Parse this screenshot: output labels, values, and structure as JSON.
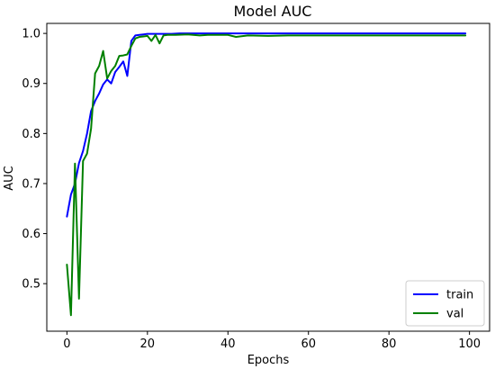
{
  "chart_data": {
    "type": "line",
    "title": "Model AUC",
    "xlabel": "Epochs",
    "ylabel": "AUC",
    "xlim": [
      -5,
      105
    ],
    "ylim": [
      0.405,
      1.02
    ],
    "xticks": [
      0,
      20,
      40,
      60,
      80,
      100
    ],
    "yticks": [
      0.5,
      0.6,
      0.7,
      0.8,
      0.9,
      1.0
    ],
    "xtick_labels": [
      "0",
      "20",
      "40",
      "60",
      "80",
      "100"
    ],
    "ytick_labels": [
      "0.5",
      "0.6",
      "0.7",
      "0.8",
      "0.9",
      "1.0"
    ],
    "grid": false,
    "legend_position": "lower-right",
    "series": [
      {
        "name": "train",
        "color": "#0000ff",
        "x": [
          0,
          1,
          2,
          3,
          4,
          5,
          6,
          7,
          8,
          9,
          10,
          11,
          12,
          13,
          14,
          15,
          16,
          17,
          18,
          19,
          20,
          22,
          24,
          26,
          28,
          30,
          35,
          40,
          45,
          50,
          55,
          60,
          65,
          70,
          75,
          80,
          85,
          90,
          95,
          99
        ],
        "y": [
          0.634,
          0.678,
          0.7,
          0.741,
          0.765,
          0.8,
          0.845,
          0.865,
          0.88,
          0.898,
          0.908,
          0.9,
          0.923,
          0.933,
          0.944,
          0.915,
          0.985,
          0.996,
          0.997,
          0.998,
          0.999,
          0.999,
          0.999,
          0.999,
          1.0,
          1.0,
          1.0,
          1.0,
          1.0,
          1.0,
          1.0,
          1.0,
          1.0,
          1.0,
          1.0,
          1.0,
          1.0,
          1.0,
          1.0,
          1.0
        ]
      },
      {
        "name": "val",
        "color": "#008000",
        "x": [
          0,
          1,
          2,
          3,
          4,
          5,
          6,
          7,
          8,
          9,
          10,
          11,
          12,
          13,
          14,
          15,
          16,
          17,
          18,
          19,
          20,
          21,
          22,
          23,
          24,
          25,
          27,
          30,
          33,
          35,
          38,
          40,
          42,
          45,
          50,
          55,
          60,
          65,
          70,
          75,
          80,
          85,
          90,
          95,
          99
        ],
        "y": [
          0.538,
          0.437,
          0.74,
          0.47,
          0.745,
          0.76,
          0.81,
          0.92,
          0.935,
          0.965,
          0.91,
          0.925,
          0.935,
          0.955,
          0.956,
          0.958,
          0.975,
          0.99,
          0.993,
          0.994,
          0.995,
          0.985,
          0.997,
          0.98,
          0.996,
          0.997,
          0.997,
          0.998,
          0.996,
          0.997,
          0.997,
          0.997,
          0.993,
          0.996,
          0.995,
          0.996,
          0.996,
          0.996,
          0.996,
          0.996,
          0.996,
          0.996,
          0.996,
          0.996,
          0.996
        ]
      }
    ]
  }
}
